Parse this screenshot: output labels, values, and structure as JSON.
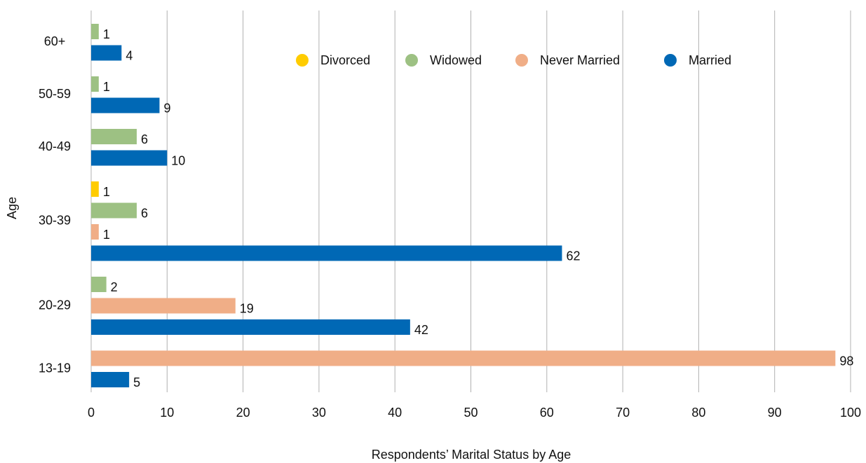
{
  "chart_data": {
    "type": "bar",
    "orientation": "horizontal",
    "title": "Respondents’ Marital Status by Age",
    "y_label": "Age",
    "categories": [
      "13-19",
      "20-29",
      "30-39",
      "40-49",
      "50-59",
      "60+"
    ],
    "series": [
      {
        "name": "Divorced",
        "color": "#ffcc00",
        "values": [
          null,
          null,
          1,
          null,
          null,
          null
        ]
      },
      {
        "name": "Widowed",
        "color": "#9dc183",
        "values": [
          null,
          2,
          6,
          6,
          1,
          1
        ]
      },
      {
        "name": "Never Married",
        "color": "#f0ae87",
        "values": [
          98,
          19,
          1,
          null,
          null,
          null
        ]
      },
      {
        "name": "Married",
        "color": "#0068b5",
        "values": [
          5,
          42,
          62,
          10,
          9,
          4
        ]
      }
    ],
    "xlim": [
      0,
      100
    ],
    "xticks": [
      0,
      10,
      20,
      30,
      40,
      50,
      60,
      70,
      80,
      90,
      100
    ],
    "grid": true,
    "legend": "top"
  }
}
